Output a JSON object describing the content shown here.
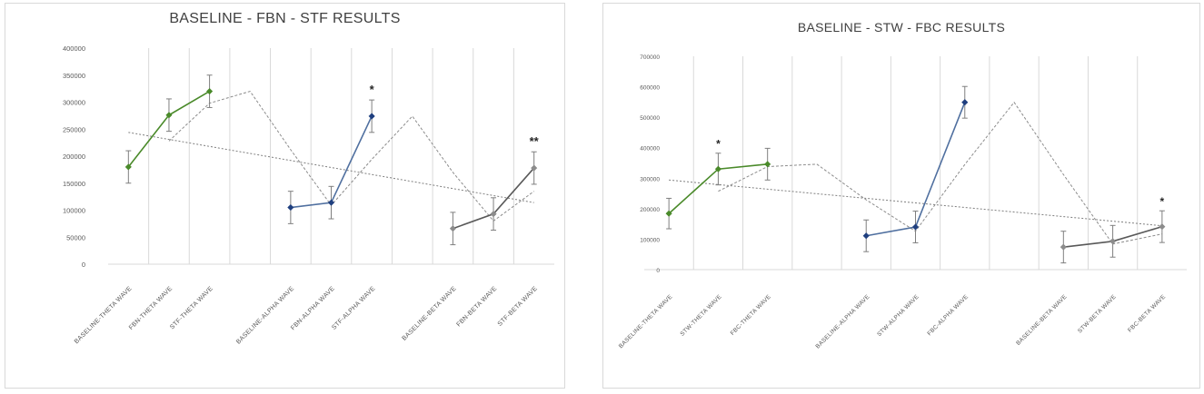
{
  "chart_data": [
    {
      "type": "line",
      "title": "BASELINE - FBN - STF RESULTS",
      "categories": [
        "BASELINE-THETA WAVE",
        "FBN-THETA WAVE",
        "STF-THETA WAVE",
        "",
        "BASELINE-ALPHA WAVE",
        "FBN-ALPHA WAVE",
        "STF-ALPHA WAVE",
        "",
        "BASELINE-BETA WAVE",
        "FBN-BETA WAVE",
        "STF-BETA WAVE"
      ],
      "ylim": [
        0,
        400000
      ],
      "yticks": [
        "0",
        "50000",
        "100000",
        "150000",
        "200000",
        "250000",
        "300000",
        "350000",
        "400000"
      ],
      "grid": "vertical category separators",
      "series": [
        {
          "group": "theta",
          "color": "#4a8a2a",
          "values": [
            180000,
            276000,
            320000,
            null,
            null,
            null,
            null,
            null,
            null,
            null,
            null
          ],
          "errors": [
            30000,
            30000,
            30000,
            null,
            null,
            null,
            null,
            null,
            null,
            null,
            null
          ]
        },
        {
          "group": "alpha",
          "color": "#4f6f9f",
          "values": [
            null,
            null,
            null,
            null,
            105000,
            114000,
            274000,
            null,
            null,
            null,
            null
          ],
          "errors": [
            null,
            null,
            null,
            null,
            30000,
            30000,
            30000,
            null,
            null,
            null,
            null
          ]
        },
        {
          "group": "beta",
          "color": "#595959",
          "values": [
            null,
            null,
            null,
            null,
            null,
            null,
            null,
            null,
            66000,
            93000,
            178000
          ],
          "errors": [
            null,
            null,
            null,
            null,
            null,
            null,
            null,
            null,
            30000,
            30000,
            30000
          ]
        }
      ],
      "trendline": [
        244000,
        231000,
        218000,
        205000,
        192000,
        179000,
        166000,
        153000,
        140000,
        127000,
        114000
      ],
      "moving_average": [
        null,
        228000,
        298000,
        320000,
        212000,
        109000,
        194000,
        274000,
        170000,
        80000,
        135000
      ],
      "annotations": [
        {
          "category": "STF-ALPHA WAVE",
          "text": "*",
          "value": 316000
        },
        {
          "category": "STF-BETA WAVE",
          "text": "**",
          "value": 220000
        }
      ]
    },
    {
      "type": "line",
      "title": "BASELINE - STW - FBC RESULTS",
      "categories": [
        "BASELINE-THETA WAVE",
        "STW-THETA WAVE",
        "FBC-THETA WAVE",
        "",
        "BASELINE-ALPHA WAVE",
        "STW-ALPHA WAVE",
        "FBC-ALPHA WAVE",
        "",
        "BASELINE-BETA WAVE",
        "STW-BETA WAVE",
        "FBC-BETA WAVE"
      ],
      "ylim": [
        0,
        700000
      ],
      "yticks": [
        "0",
        "100000",
        "200000",
        "300000",
        "400000",
        "500000",
        "600000",
        "700000"
      ],
      "grid": "vertical category separators",
      "series": [
        {
          "group": "theta",
          "color": "#4a8a2a",
          "values": [
            184000,
            330000,
            346000,
            null,
            null,
            null,
            null,
            null,
            null,
            null,
            null
          ],
          "errors": [
            50000,
            52000,
            52000,
            null,
            null,
            null,
            null,
            null,
            null,
            null,
            null
          ]
        },
        {
          "group": "alpha",
          "color": "#4f6f9f",
          "values": [
            null,
            null,
            null,
            null,
            111000,
            140000,
            549000,
            null,
            null,
            null,
            null
          ],
          "errors": [
            null,
            null,
            null,
            null,
            52000,
            52000,
            52000,
            null,
            null,
            null,
            null
          ]
        },
        {
          "group": "beta",
          "color": "#595959",
          "values": [
            null,
            null,
            null,
            null,
            null,
            null,
            null,
            null,
            74000,
            93000,
            141000
          ],
          "errors": [
            null,
            null,
            null,
            null,
            null,
            null,
            null,
            null,
            52000,
            52000,
            52000
          ]
        }
      ],
      "trendline": [
        294000,
        279000,
        264000,
        249000,
        234000,
        219000,
        204000,
        189000,
        174000,
        159000,
        144000
      ],
      "moving_average": [
        null,
        257000,
        338000,
        346000,
        229000,
        126000,
        345000,
        549000,
        312000,
        84000,
        117000
      ],
      "annotations": [
        {
          "category": "STW-THETA WAVE",
          "text": "*",
          "value": 400000
        },
        {
          "category": "FBC-BETA WAVE",
          "text": "*",
          "value": 212000
        }
      ]
    }
  ]
}
